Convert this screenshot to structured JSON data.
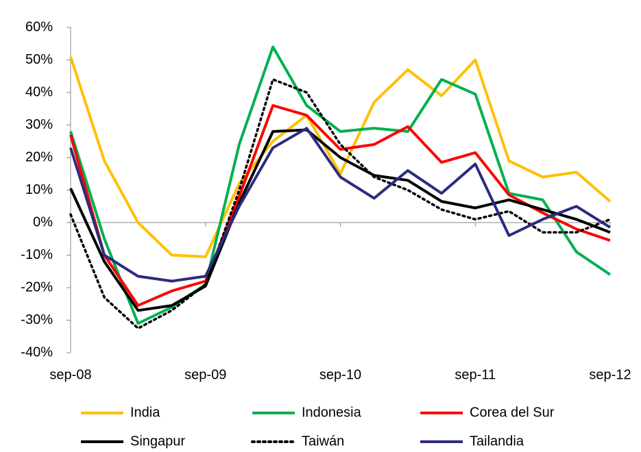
{
  "chart_data": {
    "type": "line",
    "categories": [
      "sep-08",
      null,
      null,
      null,
      "sep-09",
      null,
      null,
      null,
      "sep-10",
      null,
      null,
      null,
      "sep-11",
      null,
      null,
      null,
      "sep-12"
    ],
    "ylim": [
      -40,
      60
    ],
    "yticks": [
      {
        "value": -40,
        "label": "-40%"
      },
      {
        "value": -30,
        "label": "-30%"
      },
      {
        "value": -20,
        "label": "-20%"
      },
      {
        "value": -10,
        "label": "-10%"
      },
      {
        "value": 0,
        "label": "0%"
      },
      {
        "value": 10,
        "label": "10%"
      },
      {
        "value": 20,
        "label": "20%"
      },
      {
        "value": 30,
        "label": "30%"
      },
      {
        "value": 40,
        "label": "40%"
      },
      {
        "value": 50,
        "label": "50%"
      },
      {
        "value": 60,
        "label": "60%"
      }
    ],
    "series": [
      {
        "name": "India",
        "color": "#FFC000",
        "dash": "solid",
        "values": [
          51,
          19,
          0,
          -10,
          -10.5,
          12,
          25,
          33,
          15,
          37,
          47,
          39,
          50,
          19,
          14,
          15.5,
          6.5
        ]
      },
      {
        "name": "Indonesia",
        "color": "#00B050",
        "dash": "solid",
        "values": [
          28,
          -5,
          -31,
          -26,
          -19,
          24,
          54,
          36,
          28,
          29,
          28,
          44,
          39.5,
          9,
          7,
          -9,
          -16
        ]
      },
      {
        "name": "Corea del Sur",
        "color": "#FF0000",
        "dash": "solid",
        "values": [
          27,
          -10,
          -25.5,
          -21,
          -18,
          8,
          36,
          33,
          22.5,
          24,
          29.5,
          18.5,
          21.5,
          8.5,
          3,
          -2,
          -5.5
        ]
      },
      {
        "name": "Singapur",
        "color": "#000000",
        "dash": "solid",
        "values": [
          10.5,
          -12,
          -27,
          -25.5,
          -19.5,
          6,
          28,
          28.5,
          20,
          14.5,
          13,
          6.5,
          4.5,
          7,
          4,
          1,
          -3
        ]
      },
      {
        "name": "Taiwán",
        "color": "#000000",
        "dash": "dotted",
        "values": [
          2.5,
          -23,
          -32.5,
          -27,
          -19,
          10,
          44,
          40,
          24,
          14,
          10,
          4,
          1,
          3.5,
          -3,
          -3,
          1
        ]
      },
      {
        "name": "Tailandia",
        "color": "#2B2B7F",
        "dash": "solid",
        "values": [
          23,
          -10,
          -16.5,
          -18,
          -16.5,
          5,
          23,
          29,
          14,
          7.5,
          16,
          9,
          18,
          -4,
          1,
          5,
          -1.5
        ]
      }
    ]
  }
}
